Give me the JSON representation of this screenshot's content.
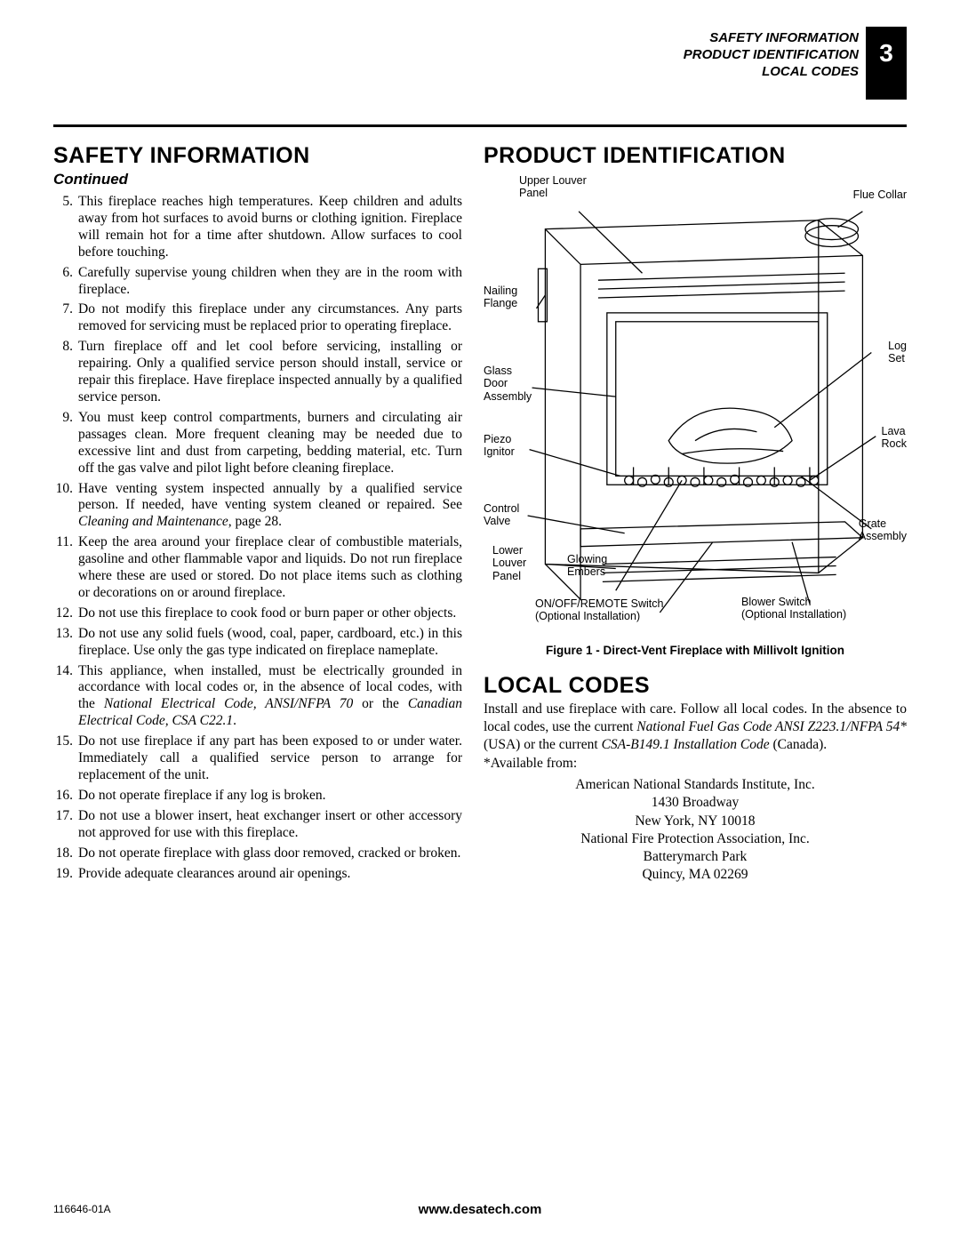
{
  "header": {
    "lines": [
      "SAFETY INFORMATION",
      "PRODUCT IDENTIFICATION",
      "LOCAL CODES"
    ],
    "page_number": "3"
  },
  "safety": {
    "heading": "SAFETY INFORMATION",
    "continued": "Continued",
    "start_number": 5,
    "items": [
      "This fireplace reaches high temperatures. Keep children and adults away from hot surfaces to avoid burns or clothing ignition. Fireplace will remain hot for a time after shutdown. Allow surfaces to cool before touching.",
      "Carefully supervise young children when they are in the room with fireplace.",
      "Do not modify this fireplace under any circumstances. Any parts removed for servicing must be replaced prior to operating fireplace.",
      "Turn fireplace off and let cool before servicing, installing or repairing. Only a qualified service person should install, service or repair this fireplace. Have fireplace inspected annually by a qualified service person.",
      "You must keep control compartments, burners and circulating air passages clean. More frequent cleaning may be needed due to excessive lint and dust from carpeting, bedding material, etc. Turn off the gas valve and pilot light before cleaning fireplace.",
      "Have venting system inspected annually by a qualified service person. If needed, have venting system cleaned or repaired. See <em>Cleaning and Maintenance</em>, page 28.",
      "Keep the area around your fireplace clear of combustible materials, gasoline and other flammable vapor and liquids. Do not run fireplace where these are used or stored. Do not place items such as clothing or decorations on or around fireplace.",
      "Do not use this fireplace to cook food or burn paper or other objects.",
      "Do not use any solid fuels (wood, coal, paper, cardboard, etc.) in this fireplace. Use only the gas type indicated on fireplace nameplate.",
      "This appliance, when installed, must be electrically grounded in accordance with local codes or, in the absence of local codes, with the <em>National Electrical Code, ANSI/NFPA 70</em> or the <em>Canadian Electrical Code, CSA C22.1</em>.",
      "Do not use fireplace if any part has been exposed to or under water. Immediately call a qualified service person to arrange for replacement of the unit.",
      "Do not operate fireplace if any log is broken.",
      "Do not use a blower insert, heat exchanger insert or other accessory not approved for use with this fireplace.",
      "Do not operate fireplace with glass door removed, cracked or broken.",
      "Provide adequate clearances around air openings."
    ]
  },
  "product_id": {
    "heading": "PRODUCT IDENTIFICATION",
    "caption": "Figure 1 - Direct-Vent Fireplace with Millivolt Ignition",
    "labels": {
      "upper_louver": "Upper Louver\nPanel",
      "flue_collar": "Flue Collar",
      "nailing_flange": "Nailing\nFlange",
      "glass_door": "Glass\nDoor\nAssembly",
      "piezo": "Piezo\nIgnitor",
      "control_valve": "Control\nValve",
      "lower_louver": "Lower\nLouver\nPanel",
      "glowing_embers": "Glowing\nEmbers",
      "onoff": "ON/OFF/REMOTE Switch\n(Optional Installation)",
      "log_set": "Log\nSet",
      "lava_rock": "Lava\nRock",
      "grate": "Grate\nAssembly",
      "blower": "Blower Switch\n(Optional Installation)"
    }
  },
  "local_codes": {
    "heading": "LOCAL CODES",
    "body_html": "Install and use fireplace with care. Follow all local codes. In the absence to local codes, use the current <em>National Fuel Gas Code ANSI Z223.1/NFPA 54*</em> (USA) or the current <em>CSA-B149.1 Installation Code</em> (Canada).",
    "available": "*Available from:",
    "addresses": [
      "American National Standards Institute, Inc.",
      "1430 Broadway",
      "New York, NY 10018",
      "National Fire Protection Association, Inc.",
      "Batterymarch Park",
      "Quincy, MA 02269"
    ]
  },
  "footer": {
    "doc_id": "116646-01A",
    "site": "www.desatech.com"
  },
  "colors": {
    "text": "#000000",
    "bg": "#ffffff",
    "badge_bg": "#000000",
    "badge_fg": "#ffffff"
  }
}
